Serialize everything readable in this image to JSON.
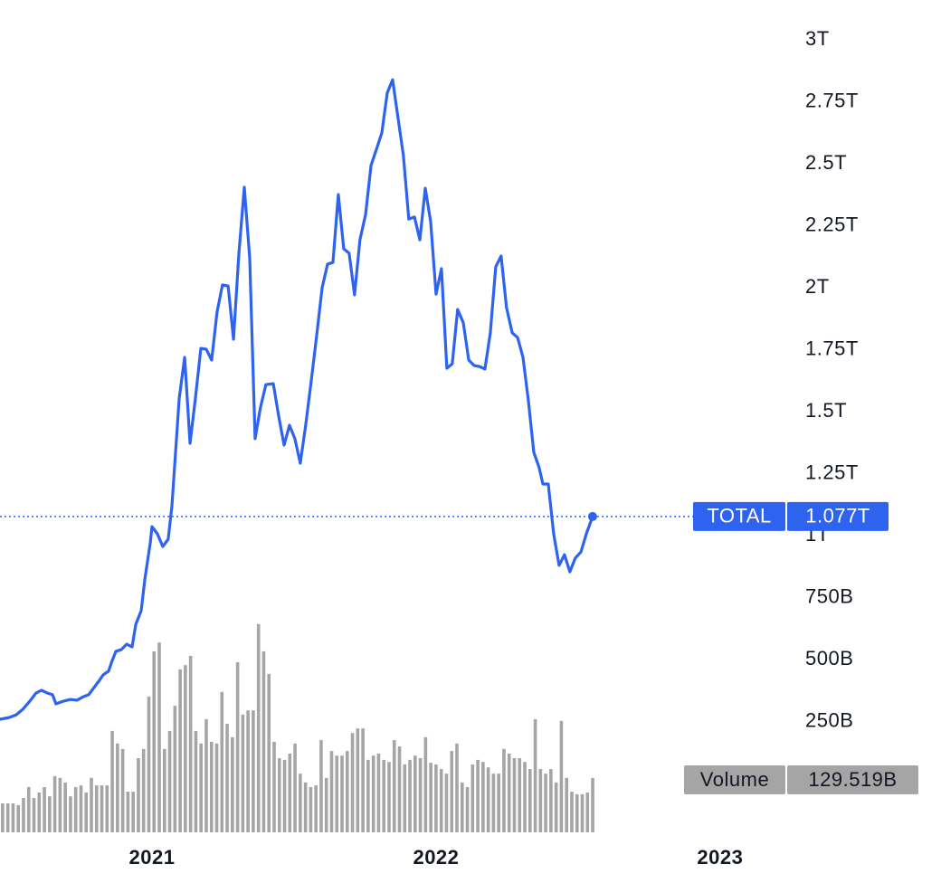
{
  "chart_data": [
    {
      "type": "line",
      "x": [
        2020.465,
        2020.497,
        2020.522,
        2020.545,
        2020.567,
        2020.592,
        2020.611,
        2020.631,
        2020.65,
        2020.662,
        2020.688,
        2020.713,
        2020.736,
        2020.758,
        2020.777,
        2020.796,
        2020.815,
        2020.828,
        2020.847,
        2020.86,
        2020.873,
        2020.892,
        2020.911,
        2020.93,
        2020.943,
        2020.962,
        2020.975,
        2020.994,
        2021.0,
        2021.019,
        2021.038,
        2021.057,
        2021.07,
        2021.083,
        2021.096,
        2021.115,
        2021.134,
        2021.153,
        2021.172,
        2021.191,
        2021.21,
        2021.229,
        2021.248,
        2021.268,
        2021.287,
        2021.306,
        2021.325,
        2021.344,
        2021.363,
        2021.382,
        2021.401,
        2021.427,
        2021.446,
        2021.465,
        2021.484,
        2021.503,
        2021.522,
        2021.541,
        2021.561,
        2021.58,
        2021.599,
        2021.618,
        2021.637,
        2021.656,
        2021.675,
        2021.694,
        2021.713,
        2021.732,
        2021.752,
        2021.771,
        2021.79,
        2021.809,
        2021.828,
        2021.847,
        2021.866,
        2021.885,
        2021.904,
        2021.924,
        2021.943,
        2021.962,
        2021.981,
        2022.0,
        2022.019,
        2022.038,
        2022.057,
        2022.076,
        2022.096,
        2022.115,
        2022.134,
        2022.153,
        2022.172,
        2022.191,
        2022.21,
        2022.229,
        2022.248,
        2022.268,
        2022.287,
        2022.306,
        2022.325,
        2022.344,
        2022.363,
        2022.376,
        2022.395,
        2022.414,
        2022.433,
        2022.452,
        2022.471,
        2022.49,
        2022.51,
        2022.529,
        2022.551
      ],
      "series": [
        {
          "name": "TOTAL",
          "color": "#2e63f0",
          "values": [
            259,
            266,
            277,
            299,
            328,
            365,
            376,
            365,
            358,
            321,
            332,
            339,
            336,
            350,
            358,
            387,
            416,
            438,
            453,
            496,
            533,
            540,
            562,
            551,
            642,
            697,
            825,
            971,
            1036,
            1007,
            956,
            985,
            1117,
            1336,
            1555,
            1719,
            1372,
            1555,
            1755,
            1752,
            1708,
            1901,
            2011,
            2007,
            1792,
            2139,
            2405,
            2120,
            1391,
            1518,
            1609,
            1613,
            1482,
            1365,
            1445,
            1391,
            1292,
            1445,
            1628,
            1810,
            2000,
            2095,
            2102,
            2376,
            2157,
            2139,
            1971,
            2193,
            2296,
            2493,
            2558,
            2624,
            2785,
            2839,
            2686,
            2533,
            2277,
            2285,
            2193,
            2401,
            2266,
            1974,
            2077,
            1675,
            1693,
            1912,
            1858,
            1708,
            1686,
            1682,
            1672,
            1818,
            2084,
            2128,
            1920,
            1818,
            1799,
            1719,
            1544,
            1336,
            1274,
            1208,
            1208,
            1007,
            880,
            923,
            854,
            909,
            934,
            1007,
            1077
          ],
          "value_labels": [
            null,
            null,
            null,
            null,
            null,
            null,
            null,
            null,
            null,
            null,
            null,
            null,
            null,
            null,
            null,
            null,
            null,
            null,
            null,
            null,
            null,
            null,
            null,
            null,
            null,
            null,
            null,
            null,
            null,
            null,
            null,
            null,
            null,
            null,
            null,
            null,
            null,
            null,
            null,
            null,
            null,
            null,
            null,
            null,
            null,
            null,
            null,
            null,
            null,
            null,
            null,
            null,
            null,
            null,
            null,
            null,
            null,
            null,
            null,
            null,
            null,
            null,
            null,
            null,
            null,
            null,
            null,
            null,
            null,
            null,
            null,
            null,
            null,
            null,
            null,
            null,
            null,
            null,
            null,
            null,
            null,
            null,
            null,
            null,
            null,
            null,
            null,
            null,
            null,
            null,
            null,
            null,
            null,
            null,
            null,
            null,
            null,
            null,
            null,
            null,
            null,
            null,
            null,
            null,
            null,
            null,
            null,
            null,
            null,
            null,
            "1.077T"
          ]
        }
      ],
      "xlim": [
        2020.465,
        2023.236
      ],
      "xticks": [
        2021,
        2022,
        2023
      ],
      "ylim": [
        0,
        3000
      ],
      "yticks": [
        {
          "value": 3000,
          "label": "3T"
        },
        {
          "value": 2750,
          "label": "2.75T"
        },
        {
          "value": 2500,
          "label": "2.5T"
        },
        {
          "value": 2250,
          "label": "2.25T"
        },
        {
          "value": 2000,
          "label": "2T"
        },
        {
          "value": 1750,
          "label": "1.75T"
        },
        {
          "value": 1500,
          "label": "1.5T"
        },
        {
          "value": 1250,
          "label": "1.25T"
        },
        {
          "value": 1000,
          "label": "1T"
        },
        {
          "value": 750,
          "label": "750B"
        },
        {
          "value": 500,
          "label": "500B"
        },
        {
          "value": 250,
          "label": "250B"
        }
      ],
      "grid": false
    },
    {
      "type": "bar",
      "categories": [
        null,
        null,
        null,
        null,
        null,
        null,
        null,
        null,
        null,
        null,
        null,
        null,
        null,
        null,
        null,
        null,
        null,
        null,
        null,
        null,
        null,
        null,
        null,
        null,
        null,
        null,
        null,
        null,
        null,
        null,
        null,
        null,
        null,
        null,
        null,
        null,
        null,
        null,
        null,
        null,
        null,
        null,
        null,
        null,
        null,
        null,
        null,
        null,
        null,
        null,
        null,
        null,
        null,
        null,
        null,
        null,
        null,
        null,
        null,
        null,
        null,
        null,
        null,
        null,
        null,
        null,
        null,
        null,
        null,
        null,
        null,
        null,
        null,
        null,
        null,
        null,
        null,
        null,
        null,
        null,
        null,
        null,
        null,
        null,
        null,
        null,
        null,
        null,
        null,
        null,
        null,
        null,
        null,
        null,
        null,
        null,
        null,
        null,
        null,
        null,
        null,
        null,
        null,
        null,
        null,
        null,
        null,
        null,
        null,
        null,
        null,
        null,
        null,
        null
      ],
      "series": [
        {
          "name": "Volume",
          "color": "#a5a5a5",
          "values": [
            69,
            69,
            69,
            65,
            82,
            108,
            82,
            95,
            108,
            86,
            134,
            130,
            119,
            86,
            108,
            112,
            95,
            130,
            112,
            112,
            112,
            242,
            212,
            199,
            97,
            97,
            177,
            199,
            324,
            432,
            453,
            199,
            242,
            302,
            389,
            399,
            421,
            242,
            212,
            270,
            216,
            212,
            335,
            259,
            227,
            406,
            281,
            291,
            291,
            497,
            432,
            378,
            216,
            177,
            173,
            188,
            212,
            140,
            119,
            108,
            112,
            220,
            130,
            194,
            183,
            183,
            194,
            237,
            248,
            248,
            173,
            183,
            188,
            173,
            168,
            220,
            205,
            162,
            173,
            183,
            177,
            227,
            166,
            162,
            151,
            140,
            194,
            212,
            119,
            108,
            162,
            173,
            168,
            155,
            140,
            140,
            199,
            188,
            177,
            177,
            168,
            151,
            270,
            151,
            140,
            151,
            119,
            266,
            130,
            97,
            91,
            91,
            95,
            129.519
          ],
          "value_labels": [
            null,
            null,
            null,
            null,
            null,
            null,
            null,
            null,
            null,
            null,
            null,
            null,
            null,
            null,
            null,
            null,
            null,
            null,
            null,
            null,
            null,
            null,
            null,
            null,
            null,
            null,
            null,
            null,
            null,
            null,
            null,
            null,
            null,
            null,
            null,
            null,
            null,
            null,
            null,
            null,
            null,
            null,
            null,
            null,
            null,
            null,
            null,
            null,
            null,
            null,
            null,
            null,
            null,
            null,
            null,
            null,
            null,
            null,
            null,
            null,
            null,
            null,
            null,
            null,
            null,
            null,
            null,
            null,
            null,
            null,
            null,
            null,
            null,
            null,
            null,
            null,
            null,
            null,
            null,
            null,
            null,
            null,
            null,
            null,
            null,
            null,
            null,
            null,
            null,
            null,
            null,
            null,
            null,
            null,
            null,
            null,
            null,
            null,
            null,
            null,
            null,
            null,
            null,
            null,
            null,
            null,
            null,
            null,
            null,
            null,
            null,
            null,
            null,
            "129.519B"
          ]
        }
      ],
      "ylim": [
        0,
        500
      ]
    }
  ]
}
